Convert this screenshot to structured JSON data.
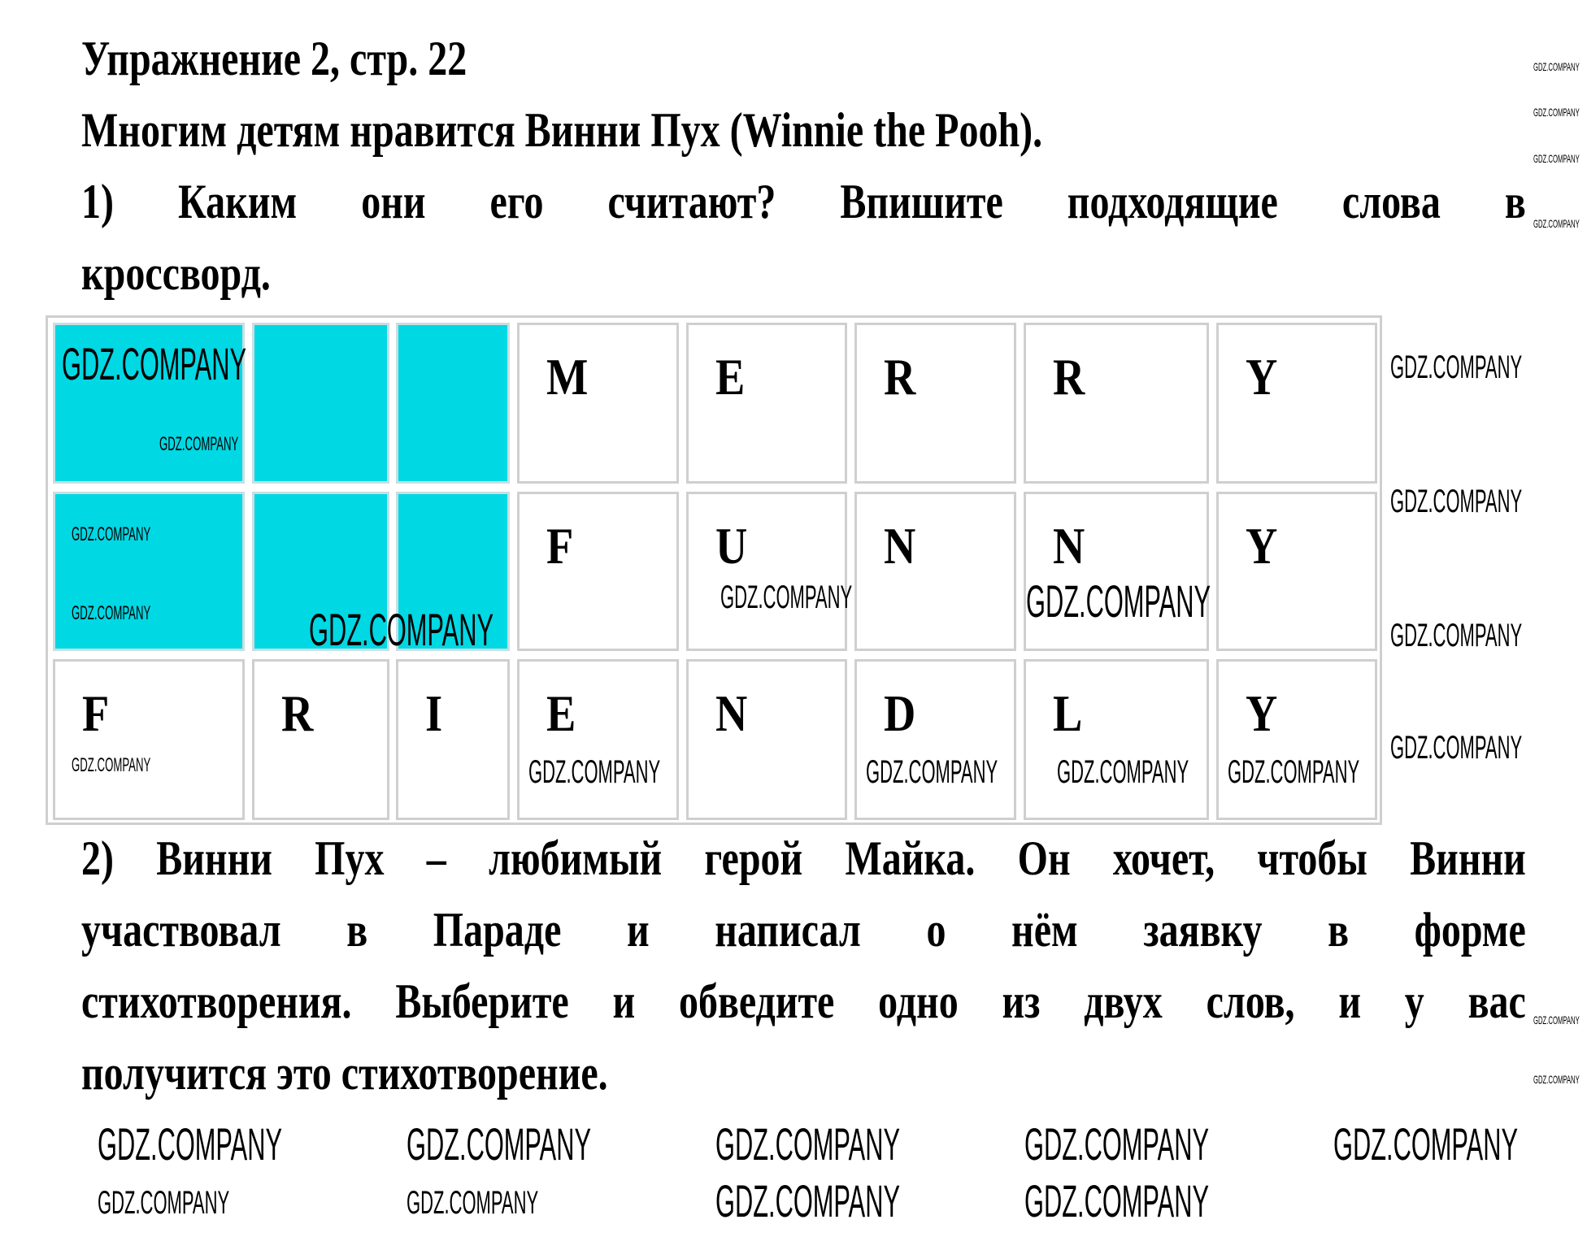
{
  "title": "Упражнение 2, стр. 22",
  "intro": "Многим детям нравится Винни Пух (Winnie the Pooh).",
  "task1": {
    "lines": [
      "1) Каким они его считают? Впишите подходящие слова в",
      "кроссворд."
    ]
  },
  "crossword": {
    "fill_color": "#00d8e4",
    "rows": [
      {
        "word": "MERRY",
        "cells": [
          "",
          "",
          "",
          "M",
          "E",
          "R",
          "R",
          "Y"
        ],
        "filled": [
          true,
          true,
          true,
          false,
          false,
          false,
          false,
          false
        ]
      },
      {
        "word": "FUNNY",
        "cells": [
          "",
          "",
          "",
          "F",
          "U",
          "N",
          "N",
          "Y"
        ],
        "filled": [
          true,
          true,
          true,
          false,
          false,
          false,
          false,
          false
        ]
      },
      {
        "word": "FRIENDLY",
        "cells": [
          "F",
          "R",
          "I",
          "E",
          "N",
          "D",
          "L",
          "Y"
        ],
        "filled": [
          false,
          false,
          false,
          false,
          false,
          false,
          false,
          false
        ]
      }
    ]
  },
  "task2": {
    "lines": [
      "2) Винни Пух – любимый герой Майка. Он хочет, чтобы Винни",
      "участвовал в Параде и написал о нём заявку в форме",
      "стихотворения. Выберите и обведите одно из двух слов, и у вас",
      "получится это стихотворение."
    ]
  },
  "watermark": "GDZ.COMPANY"
}
